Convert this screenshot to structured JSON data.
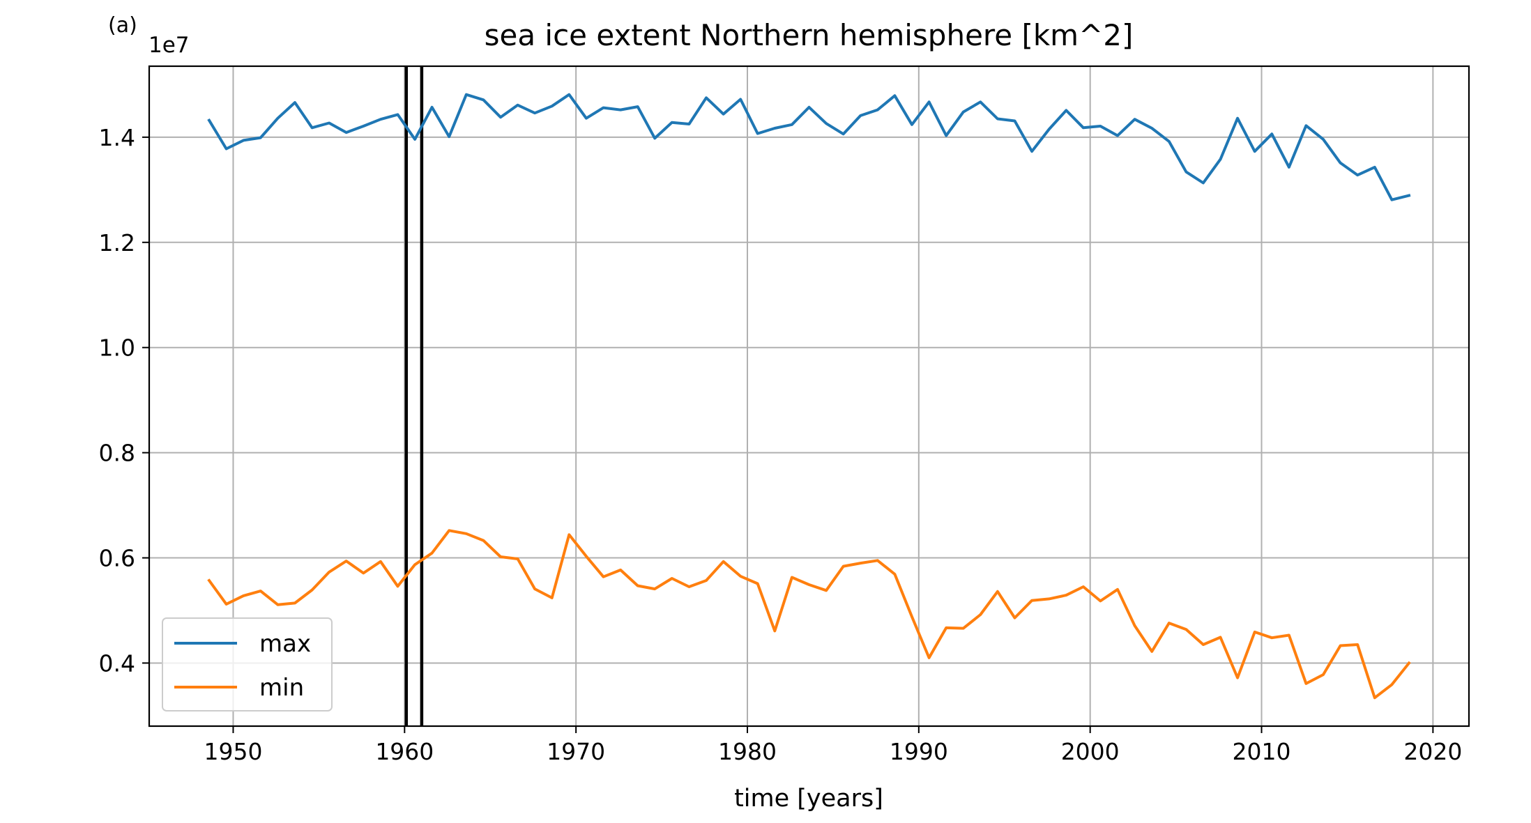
{
  "panel_label": "(a)",
  "chart_data": {
    "type": "line",
    "title": "sea ice extent Northern hemisphere [km^2]",
    "xlabel": "time [years]",
    "ylabel": "",
    "y_offset_label": "1e7",
    "xlim": [
      1945.1,
      2022.1
    ],
    "ylim": [
      0.28,
      1.535
    ],
    "x_ticks": [
      1950,
      1960,
      1970,
      1980,
      1990,
      2000,
      2010,
      2020
    ],
    "x_tick_labels": [
      "1950",
      "1960",
      "1970",
      "1980",
      "1990",
      "2000",
      "2010",
      "2020"
    ],
    "y_ticks": [
      0.4,
      0.6,
      0.8,
      1.0,
      1.2,
      1.4
    ],
    "y_tick_labels": [
      "0.4",
      "0.6",
      "0.8",
      "1.0",
      "1.2",
      "1.4"
    ],
    "grid": true,
    "legend_position": "lower-left",
    "vertical_lines": [
      1960.1,
      1961.0
    ],
    "vertical_line_color": "#000000",
    "x": [
      1948.6,
      1949.6,
      1950.6,
      1951.6,
      1952.6,
      1953.6,
      1954.6,
      1955.6,
      1956.6,
      1957.6,
      1958.6,
      1959.6,
      1960.6,
      1961.6,
      1962.6,
      1963.6,
      1964.6,
      1965.6,
      1966.6,
      1967.6,
      1968.6,
      1969.6,
      1970.6,
      1971.6,
      1972.6,
      1973.6,
      1974.6,
      1975.6,
      1976.6,
      1977.6,
      1978.6,
      1979.6,
      1980.6,
      1981.6,
      1982.6,
      1983.6,
      1984.6,
      1985.6,
      1986.6,
      1987.6,
      1988.6,
      1989.6,
      1990.6,
      1991.6,
      1992.6,
      1993.6,
      1994.6,
      1995.6,
      1996.6,
      1997.6,
      1998.6,
      1999.6,
      2000.6,
      2001.6,
      2002.6,
      2003.6,
      2004.6,
      2005.6,
      2006.6,
      2007.6,
      2008.6,
      2009.6,
      2010.6,
      2011.6,
      2012.6,
      2013.6,
      2014.6,
      2015.6,
      2016.6,
      2017.6,
      2018.6
    ],
    "series": [
      {
        "name": "max",
        "color": "#1f77b4",
        "values": [
          1.432,
          1.378,
          1.394,
          1.399,
          1.436,
          1.466,
          1.418,
          1.427,
          1.409,
          1.421,
          1.434,
          1.443,
          1.396,
          1.457,
          1.401,
          1.481,
          1.471,
          1.438,
          1.461,
          1.446,
          1.459,
          1.481,
          1.436,
          1.456,
          1.452,
          1.458,
          1.398,
          1.428,
          1.425,
          1.475,
          1.444,
          1.472,
          1.407,
          1.417,
          1.424,
          1.457,
          1.426,
          1.406,
          1.441,
          1.452,
          1.479,
          1.424,
          1.467,
          1.403,
          1.448,
          1.467,
          1.435,
          1.431,
          1.373,
          1.415,
          1.451,
          1.418,
          1.421,
          1.403,
          1.434,
          1.417,
          1.392,
          1.334,
          1.313,
          1.358,
          1.436,
          1.373,
          1.406,
          1.343,
          1.422,
          1.396,
          1.351,
          1.328,
          1.343,
          1.281,
          1.289
        ]
      },
      {
        "name": "min",
        "color": "#ff7f0e",
        "values": [
          0.557,
          0.512,
          0.528,
          0.537,
          0.511,
          0.514,
          0.539,
          0.573,
          0.594,
          0.571,
          0.593,
          0.546,
          0.587,
          0.609,
          0.652,
          0.646,
          0.633,
          0.602,
          0.598,
          0.541,
          0.524,
          0.644,
          0.603,
          0.564,
          0.577,
          0.547,
          0.541,
          0.561,
          0.545,
          0.557,
          0.593,
          0.565,
          0.551,
          0.461,
          0.563,
          0.549,
          0.538,
          0.584,
          0.59,
          0.595,
          0.569,
          0.488,
          0.41,
          0.467,
          0.466,
          0.492,
          0.536,
          0.486,
          0.519,
          0.522,
          0.529,
          0.545,
          0.518,
          0.54,
          0.471,
          0.422,
          0.476,
          0.464,
          0.435,
          0.449,
          0.372,
          0.459,
          0.448,
          0.453,
          0.361,
          0.378,
          0.433,
          0.435,
          0.334,
          0.359,
          0.4
        ]
      }
    ]
  }
}
